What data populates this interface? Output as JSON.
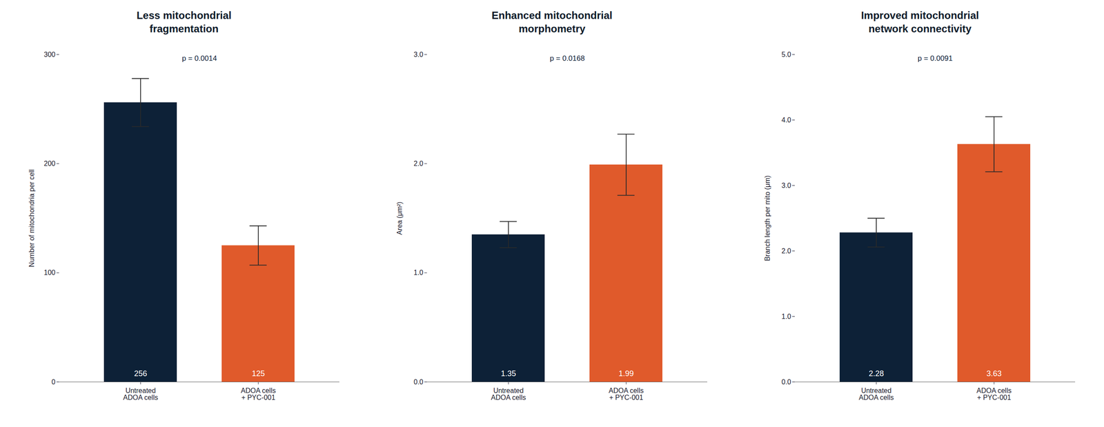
{
  "chart_data": [
    {
      "type": "bar",
      "title": "Less mitochondrial\nfragmentation",
      "ylabel": "Number of mitochondria per cell",
      "categories": [
        "Untreated\nADOA cells",
        "ADOA cells\n+ PYC-001"
      ],
      "values": [
        256,
        125
      ],
      "errors": [
        22,
        18
      ],
      "colors": [
        "#0d2137",
        "#e05a2b"
      ],
      "ylim": [
        0,
        300
      ],
      "yticks": [
        0,
        100,
        200,
        300
      ],
      "data_labels": true,
      "grid": false,
      "annotations": [
        "p = 0.0014"
      ]
    },
    {
      "type": "bar",
      "title": "Enhanced mitochondrial\nmorphometry",
      "ylabel": "Area (μm²)",
      "categories": [
        "Untreated\nADOA cells",
        "ADOA cells\n+ PYC-001"
      ],
      "values": [
        1.35,
        1.99
      ],
      "errors": [
        0.12,
        0.28
      ],
      "colors": [
        "#0d2137",
        "#e05a2b"
      ],
      "ylim": [
        0,
        3
      ],
      "yticks": [
        0,
        1,
        2,
        3
      ],
      "data_labels": true,
      "grid": false,
      "annotations": [
        "p = 0.0168"
      ]
    },
    {
      "type": "bar",
      "title": "Improved mitochondrial\nnetwork connectivity",
      "ylabel": "Branch length per mito (μm)",
      "categories": [
        "Untreated\nADOA cells",
        "ADOA cells\n+ PYC-001"
      ],
      "values": [
        2.28,
        3.63
      ],
      "errors": [
        0.22,
        0.42
      ],
      "colors": [
        "#0d2137",
        "#e05a2b"
      ],
      "ylim": [
        0,
        5
      ],
      "yticks": [
        0,
        1,
        2,
        3,
        4,
        5
      ],
      "data_labels": true,
      "grid": false,
      "annotations": [
        "p = 0.0091"
      ]
    }
  ]
}
